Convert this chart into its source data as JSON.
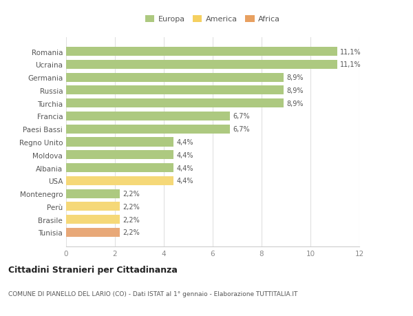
{
  "countries": [
    "Romania",
    "Ucraina",
    "Germania",
    "Russia",
    "Turchia",
    "Francia",
    "Paesi Bassi",
    "Regno Unito",
    "Moldova",
    "Albania",
    "USA",
    "Montenegro",
    "Perù",
    "Brasile",
    "Tunisia"
  ],
  "values": [
    11.1,
    11.1,
    8.9,
    8.9,
    8.9,
    6.7,
    6.7,
    4.4,
    4.4,
    4.4,
    4.4,
    2.2,
    2.2,
    2.2,
    2.2
  ],
  "labels": [
    "11,1%",
    "11,1%",
    "8,9%",
    "8,9%",
    "8,9%",
    "6,7%",
    "6,7%",
    "4,4%",
    "4,4%",
    "4,4%",
    "4,4%",
    "2,2%",
    "2,2%",
    "2,2%",
    "2,2%"
  ],
  "continents": [
    "Europa",
    "Europa",
    "Europa",
    "Europa",
    "Europa",
    "Europa",
    "Europa",
    "Europa",
    "Europa",
    "Europa",
    "America",
    "Europa",
    "America",
    "America",
    "Africa"
  ],
  "colors": {
    "Europa": "#adc980",
    "America": "#f5d878",
    "Africa": "#e8a878"
  },
  "legend_colors": {
    "Europa": "#adc980",
    "America": "#f5d060",
    "Africa": "#e8a060"
  },
  "title": "Cittadini Stranieri per Cittadinanza",
  "subtitle": "COMUNE DI PIANELLO DEL LARIO (CO) - Dati ISTAT al 1° gennaio - Elaborazione TUTTITALIA.IT",
  "xlim": [
    0,
    12
  ],
  "xticks": [
    0,
    2,
    4,
    6,
    8,
    10,
    12
  ],
  "background_color": "#ffffff",
  "grid_color": "#e0e0e0",
  "bar_height": 0.7,
  "figsize": [
    6.0,
    4.6
  ],
  "dpi": 100
}
